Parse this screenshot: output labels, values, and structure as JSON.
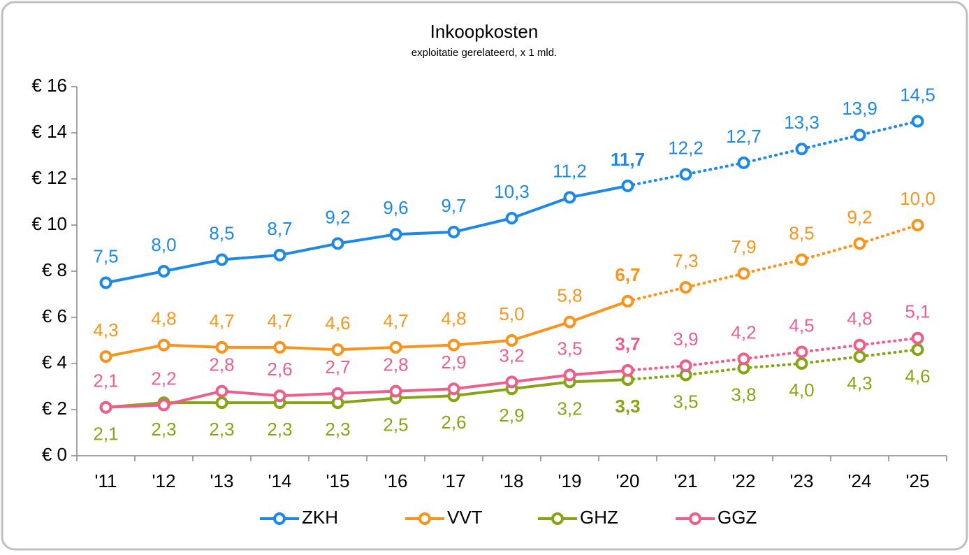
{
  "chart_data": {
    "type": "line",
    "title": "Inkoopkosten",
    "subtitle": "exploitatie gerelateerd, x 1 mld.",
    "categories": [
      "'11",
      "'12",
      "'13",
      "'14",
      "'15",
      "'16",
      "'17",
      "'18",
      "'19",
      "'20",
      "'21",
      "'22",
      "'23",
      "'24",
      "'25"
    ],
    "dotted_after": "'20",
    "ylim": [
      0,
      16
    ],
    "yticks": [
      {
        "value": 0,
        "label": "€ 0"
      },
      {
        "value": 2,
        "label": "€ 2"
      },
      {
        "value": 4,
        "label": "€ 4"
      },
      {
        "value": 6,
        "label": "€ 6"
      },
      {
        "value": 8,
        "label": "€ 8"
      },
      {
        "value": 10,
        "label": "€ 10"
      },
      {
        "value": 12,
        "label": "€ 12"
      },
      {
        "value": 14,
        "label": "€ 14"
      },
      {
        "value": 16,
        "label": "€ 16"
      }
    ],
    "grid": false,
    "legend": "bottom",
    "series": [
      {
        "name": "ZKH",
        "color": "#1e88e5",
        "label_position": "above",
        "values": [
          7.5,
          8.0,
          8.5,
          8.7,
          9.2,
          9.6,
          9.7,
          10.3,
          11.2,
          11.7,
          12.2,
          12.7,
          13.3,
          13.9,
          14.5
        ],
        "value_labels": [
          "7,5",
          "8,0",
          "8,5",
          "8,7",
          "9,2",
          "9,6",
          "9,7",
          "10,3",
          "11,2",
          "11,7",
          "12,2",
          "12,7",
          "13,3",
          "13,9",
          "14,5"
        ]
      },
      {
        "name": "VVT",
        "color": "#f7941d",
        "label_position": "above",
        "values": [
          4.3,
          4.8,
          4.7,
          4.7,
          4.6,
          4.7,
          4.8,
          5.0,
          5.8,
          6.7,
          7.3,
          7.9,
          8.5,
          9.2,
          10.0
        ],
        "value_labels": [
          "4,3",
          "4,8",
          "4,7",
          "4,7",
          "4,6",
          "4,7",
          "4,8",
          "5,0",
          "5,8",
          "6,7",
          "7,3",
          "7,9",
          "8,5",
          "9,2",
          "10,0"
        ]
      },
      {
        "name": "GHZ",
        "color": "#86a516",
        "label_position": "below",
        "values": [
          2.1,
          2.3,
          2.3,
          2.3,
          2.3,
          2.5,
          2.6,
          2.9,
          3.2,
          3.3,
          3.5,
          3.8,
          4.0,
          4.3,
          4.6
        ],
        "value_labels": [
          "2,1",
          "2,3",
          "2,3",
          "2,3",
          "2,3",
          "2,5",
          "2,6",
          "2,9",
          "3,2",
          "3,3",
          "3,5",
          "3,8",
          "4,0",
          "4,3",
          "4,6"
        ]
      },
      {
        "name": "GGZ",
        "color": "#ec5f8a",
        "label_position": "above",
        "values": [
          2.1,
          2.2,
          2.8,
          2.6,
          2.7,
          2.8,
          2.9,
          3.2,
          3.5,
          3.7,
          3.9,
          4.2,
          4.5,
          4.8,
          5.1
        ],
        "value_labels": [
          "2,1",
          "2,2",
          "2,8",
          "2,6",
          "2,7",
          "2,8",
          "2,9",
          "3,2",
          "3,5",
          "3,7",
          "3,9",
          "4,2",
          "4,5",
          "4,8",
          "5,1"
        ]
      }
    ]
  }
}
